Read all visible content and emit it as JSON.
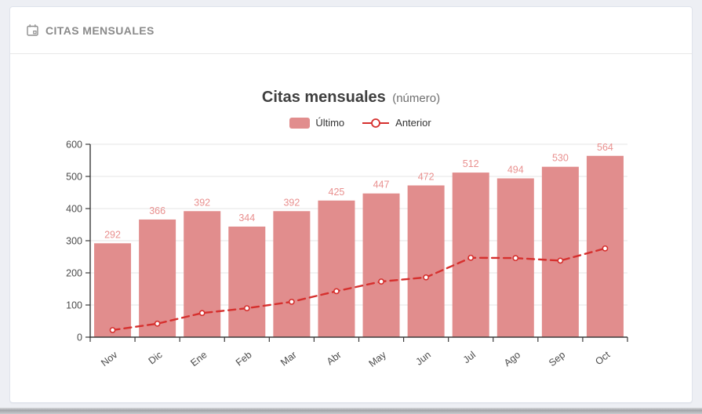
{
  "header": {
    "title": "CITAS MENSUALES",
    "icon": "calendar-icon"
  },
  "legend": [
    {
      "label": "Último",
      "marker": "bar-swatch"
    },
    {
      "label": "Anterior",
      "marker": "line-with-circle"
    }
  ],
  "colors": {
    "bar": "#e18d8d",
    "bar_label": "#e9908f",
    "line": "#d6302e",
    "axis": "#3a3a3a",
    "grid": "#e4e4e4",
    "tick_label": "#4c4c4c",
    "header_text": "#8a8a8a",
    "card_border": "#dfe3ec",
    "page_bg": "#edeff4"
  },
  "chart_data": {
    "type": "bar",
    "title": "Citas mensuales",
    "subtitle": "(número)",
    "categories": [
      "Nov",
      "Dic",
      "Ene",
      "Feb",
      "Mar",
      "Abr",
      "May",
      "Jun",
      "Jul",
      "Ago",
      "Sep",
      "Oct"
    ],
    "series": [
      {
        "name": "Último",
        "type": "bar",
        "values": [
          292,
          366,
          392,
          344,
          392,
          425,
          447,
          472,
          512,
          494,
          530,
          564
        ]
      },
      {
        "name": "Anterior",
        "type": "line",
        "style": "dashed",
        "marker": "hollow-circle",
        "values": [
          22,
          42,
          75,
          90,
          110,
          143,
          173,
          186,
          247,
          246,
          238,
          276
        ]
      }
    ],
    "ylim": [
      0,
      600
    ],
    "ytick_step": 100,
    "grid": true,
    "legend_position": "top",
    "x_label_rotation": -38
  }
}
